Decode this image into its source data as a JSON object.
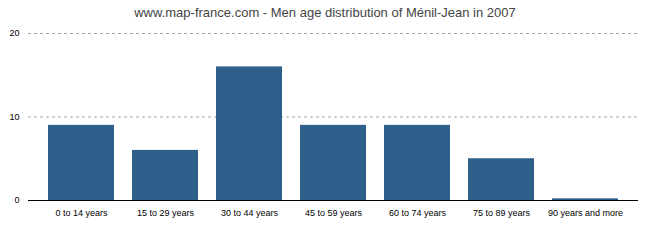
{
  "chart_data": {
    "type": "bar",
    "title": "www.map-france.com - Men age distribution of Ménil-Jean in 2007",
    "categories": [
      "0 to 14 years",
      "15 to 29 years",
      "30 to 44 years",
      "45 to 59 years",
      "60 to 74 years",
      "75 to 89 years",
      "90 years and more"
    ],
    "values": [
      9,
      6,
      16,
      9,
      9,
      5,
      0.2
    ],
    "color": "#2e5f8a",
    "ylim": [
      0,
      20
    ],
    "yticks": [
      0,
      10,
      20
    ],
    "grid": true
  }
}
